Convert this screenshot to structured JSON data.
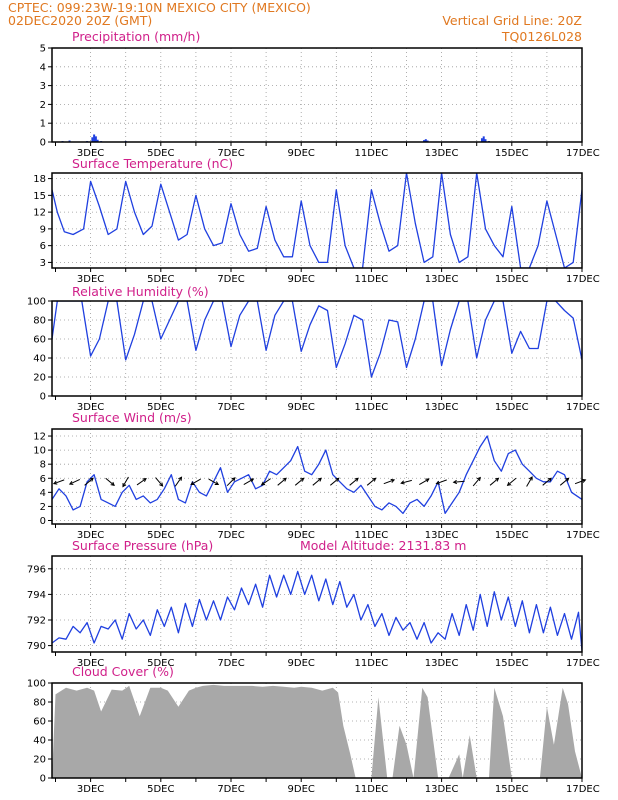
{
  "header": {
    "line1": "CPTEC:   099:23W-19:10N   MEXICO CITY (MEXICO)",
    "line2": "02DEC2020 20Z (GMT)",
    "vertical_grid": "Vertical Grid Line: 20Z",
    "code": "TQ0126L028"
  },
  "colors": {
    "header": "#e07820",
    "titles": "#d0208a",
    "line": "#2040e0",
    "cloud": "#a8a8a8"
  },
  "x_axis": {
    "labels": [
      "3DEC",
      "5DEC",
      "7DEC",
      "9DEC",
      "11DEC",
      "13DEC",
      "15DEC",
      "17DEC"
    ],
    "label_days": [
      3,
      5,
      7,
      9,
      11,
      13,
      15,
      17
    ],
    "start_day": 1.9,
    "end_day": 17.0
  },
  "chart_data": [
    {
      "id": "precip",
      "type": "bar",
      "title": "Precipitation (mm/h)",
      "ylim": [
        0,
        5
      ],
      "yticks": [
        0,
        1,
        2,
        3,
        4,
        5
      ],
      "ytick_labels": [
        "0",
        "1",
        "2",
        "3",
        "4",
        "5"
      ],
      "x": [
        2.2,
        2.4,
        2.9,
        3.05,
        3.1,
        3.15,
        3.2,
        3.3,
        4.0,
        4.8,
        6.5,
        7.3,
        12.5,
        12.55,
        12.6,
        13.3,
        14.15,
        14.2,
        14.25,
        14.35
      ],
      "values": [
        0.05,
        0.08,
        0.05,
        0.25,
        0.4,
        0.3,
        0.12,
        0.05,
        0.05,
        0.04,
        0.03,
        0.03,
        0.1,
        0.15,
        0.08,
        0.03,
        0.2,
        0.3,
        0.15,
        0.05
      ]
    },
    {
      "id": "temp",
      "type": "line",
      "title": "Surface Temperature (nC)",
      "ylim": [
        2,
        19
      ],
      "yticks": [
        3,
        6,
        9,
        12,
        15,
        18
      ],
      "ytick_labels": [
        "3",
        "6",
        "9",
        "12",
        "15",
        "18"
      ],
      "x": [
        1.9,
        2.05,
        2.25,
        2.5,
        2.8,
        3.0,
        3.25,
        3.5,
        3.75,
        4.0,
        4.25,
        4.5,
        4.75,
        5.0,
        5.25,
        5.5,
        5.75,
        6.0,
        6.25,
        6.5,
        6.75,
        7.0,
        7.25,
        7.5,
        7.75,
        8.0,
        8.25,
        8.5,
        8.75,
        9.0,
        9.25,
        9.5,
        9.75,
        10.0,
        10.25,
        10.5,
        10.75,
        11.0,
        11.25,
        11.5,
        11.75,
        12.0,
        12.25,
        12.5,
        12.75,
        13.0,
        13.25,
        13.5,
        13.75,
        14.0,
        14.25,
        14.5,
        14.75,
        15.0,
        15.25,
        15.5,
        15.75,
        16.0,
        16.25,
        16.5,
        16.75,
        17.0
      ],
      "values": [
        16.0,
        12.0,
        8.5,
        8.0,
        9.0,
        17.5,
        13.0,
        8.0,
        9.0,
        17.5,
        12.0,
        8.0,
        9.5,
        17.0,
        12.0,
        7.0,
        8.0,
        15.0,
        9.0,
        6.0,
        6.5,
        13.5,
        8.0,
        5.0,
        5.5,
        13.0,
        7.0,
        4.0,
        4.0,
        14.0,
        6.0,
        3.0,
        3.0,
        16.0,
        6.0,
        2.0,
        2.0,
        16.0,
        10.0,
        5.0,
        6.0,
        19.0,
        10.0,
        3.0,
        4.0,
        19.0,
        8.0,
        3.0,
        4.0,
        19.0,
        9.0,
        6.0,
        4.0,
        13.0,
        2.0,
        2.0,
        6.0,
        14.0,
        8.0,
        2.0,
        3.0,
        16.0
      ]
    },
    {
      "id": "rh",
      "type": "line",
      "title": "Relative Humidity (%)",
      "ylim": [
        0,
        100
      ],
      "yticks": [
        0,
        20,
        40,
        60,
        80,
        100
      ],
      "ytick_labels": [
        "0",
        "20",
        "40",
        "60",
        "80",
        "100"
      ],
      "x": [
        1.9,
        2.05,
        2.25,
        2.5,
        2.75,
        3.0,
        3.25,
        3.5,
        3.75,
        4.0,
        4.25,
        4.5,
        4.75,
        5.0,
        5.25,
        5.5,
        5.75,
        6.0,
        6.25,
        6.5,
        6.75,
        7.0,
        7.25,
        7.5,
        7.75,
        8.0,
        8.25,
        8.5,
        8.75,
        9.0,
        9.25,
        9.5,
        9.75,
        10.0,
        10.25,
        10.5,
        10.75,
        11.0,
        11.25,
        11.5,
        11.75,
        12.0,
        12.25,
        12.5,
        12.75,
        13.0,
        13.25,
        13.5,
        13.75,
        14.0,
        14.25,
        14.5,
        14.75,
        15.0,
        15.25,
        15.5,
        15.75,
        16.0,
        16.25,
        16.5,
        16.75,
        17.0
      ],
      "values": [
        60,
        100,
        100,
        100,
        100,
        42,
        60,
        100,
        100,
        38,
        65,
        100,
        100,
        60,
        80,
        100,
        100,
        48,
        80,
        100,
        100,
        52,
        85,
        100,
        100,
        48,
        85,
        100,
        100,
        47,
        75,
        95,
        90,
        30,
        55,
        85,
        80,
        20,
        45,
        80,
        78,
        30,
        60,
        100,
        100,
        32,
        70,
        100,
        100,
        40,
        80,
        100,
        100,
        45,
        68,
        50,
        50,
        100,
        100,
        90,
        82,
        38
      ]
    },
    {
      "id": "wind",
      "type": "line",
      "title": "Surface Wind (m/s)",
      "ylim": [
        -0.5,
        13
      ],
      "yticks": [
        0,
        2,
        4,
        6,
        8,
        10,
        12
      ],
      "ytick_labels": [
        "0",
        "2",
        "4",
        "6",
        "8",
        "10",
        "12"
      ],
      "x": [
        1.9,
        2.1,
        2.3,
        2.5,
        2.7,
        2.9,
        3.1,
        3.3,
        3.5,
        3.7,
        3.9,
        4.1,
        4.3,
        4.5,
        4.7,
        4.9,
        5.1,
        5.3,
        5.5,
        5.7,
        5.9,
        6.1,
        6.3,
        6.5,
        6.7,
        6.9,
        7.1,
        7.3,
        7.5,
        7.7,
        7.9,
        8.1,
        8.3,
        8.5,
        8.7,
        8.9,
        9.1,
        9.3,
        9.5,
        9.7,
        9.9,
        10.1,
        10.3,
        10.5,
        10.7,
        10.9,
        11.1,
        11.3,
        11.5,
        11.7,
        11.9,
        12.1,
        12.3,
        12.5,
        12.7,
        12.9,
        13.1,
        13.3,
        13.5,
        13.7,
        13.9,
        14.1,
        14.3,
        14.5,
        14.7,
        14.9,
        15.1,
        15.3,
        15.5,
        15.7,
        15.9,
        16.1,
        16.3,
        16.5,
        16.7,
        17.0
      ],
      "values": [
        3.0,
        4.5,
        3.5,
        1.5,
        2.0,
        5.5,
        6.5,
        3.0,
        2.5,
        2.0,
        4.0,
        5.0,
        3.0,
        3.5,
        2.5,
        3.0,
        4.5,
        6.5,
        3.0,
        2.5,
        5.5,
        4.0,
        3.5,
        5.5,
        7.5,
        4.0,
        5.5,
        6.0,
        6.5,
        4.5,
        5.0,
        7.0,
        6.5,
        7.5,
        8.5,
        10.5,
        7.0,
        6.5,
        8.0,
        10.0,
        6.5,
        5.5,
        4.5,
        4.0,
        5.0,
        3.5,
        2.0,
        1.5,
        2.5,
        2.0,
        1.0,
        2.5,
        3.0,
        2.0,
        3.5,
        5.5,
        1.0,
        2.5,
        4.0,
        6.5,
        8.5,
        10.5,
        12.0,
        8.5,
        7.0,
        9.5,
        10.0,
        8.0,
        7.0,
        6.0,
        5.5,
        5.5,
        7.0,
        6.5,
        4.0,
        3.0
      ],
      "arrow_days": [
        2.1,
        2.55,
        2.95,
        3.55,
        4.0,
        4.45,
        4.95,
        5.5,
        6.0,
        6.5,
        7.0,
        7.5,
        8.0,
        8.45,
        8.95,
        9.45,
        9.95,
        10.5,
        11.0,
        11.5,
        12.0,
        12.5,
        13.0,
        13.5,
        14.0,
        14.5,
        15.0,
        15.5,
        16.0,
        16.5,
        16.95
      ],
      "arrow_angles_deg": [
        -160,
        -155,
        40,
        -40,
        -120,
        35,
        -50,
        55,
        -150,
        -30,
        45,
        30,
        -145,
        40,
        40,
        40,
        40,
        40,
        40,
        20,
        -165,
        30,
        -160,
        -175,
        50,
        40,
        -140,
        60,
        40,
        40,
        20
      ]
    },
    {
      "id": "pressure",
      "type": "line",
      "title": "Surface Pressure (hPa)",
      "model_altitude": "Model Altitude: 2131.83 m",
      "ylim": [
        789.5,
        797
      ],
      "yticks": [
        790,
        792,
        794,
        796
      ],
      "ytick_labels": [
        "790",
        "792",
        "794",
        "796"
      ],
      "x": [
        1.9,
        2.1,
        2.3,
        2.5,
        2.7,
        2.9,
        3.1,
        3.3,
        3.5,
        3.7,
        3.9,
        4.1,
        4.3,
        4.5,
        4.7,
        4.9,
        5.1,
        5.3,
        5.5,
        5.7,
        5.9,
        6.1,
        6.3,
        6.5,
        6.7,
        6.9,
        7.1,
        7.3,
        7.5,
        7.7,
        7.9,
        8.1,
        8.3,
        8.5,
        8.7,
        8.9,
        9.1,
        9.3,
        9.5,
        9.7,
        9.9,
        10.1,
        10.3,
        10.5,
        10.7,
        10.9,
        11.1,
        11.3,
        11.5,
        11.7,
        11.9,
        12.1,
        12.3,
        12.5,
        12.7,
        12.9,
        13.1,
        13.3,
        13.5,
        13.7,
        13.9,
        14.1,
        14.3,
        14.5,
        14.7,
        14.9,
        15.1,
        15.3,
        15.5,
        15.7,
        15.9,
        16.1,
        16.3,
        16.5,
        16.7,
        16.9,
        17.0
      ],
      "values": [
        790.2,
        790.6,
        790.5,
        791.5,
        791.0,
        791.8,
        790.2,
        791.5,
        791.3,
        792.0,
        790.5,
        792.5,
        791.3,
        792.0,
        790.8,
        792.8,
        791.5,
        793.0,
        791.0,
        793.3,
        791.5,
        793.6,
        792.0,
        793.5,
        792.0,
        793.8,
        792.8,
        794.5,
        793.2,
        794.8,
        793.0,
        795.5,
        793.8,
        795.5,
        794.0,
        795.8,
        794.0,
        795.5,
        793.5,
        795.2,
        793.2,
        795.0,
        793.0,
        794.0,
        792.0,
        793.2,
        791.5,
        792.5,
        790.8,
        792.2,
        791.2,
        791.8,
        790.5,
        791.8,
        790.2,
        791.0,
        790.5,
        792.5,
        790.8,
        793.2,
        791.2,
        794.0,
        791.5,
        794.2,
        792.0,
        793.8,
        791.5,
        793.5,
        791.0,
        793.2,
        791.0,
        793.0,
        790.8,
        792.5,
        790.5,
        792.6,
        789.6
      ]
    },
    {
      "id": "cloud",
      "type": "area",
      "title": "Cloud Cover (%)",
      "ylim": [
        0,
        100
      ],
      "yticks": [
        0,
        20,
        40,
        60,
        80,
        100
      ],
      "ytick_labels": [
        "0",
        "20",
        "40",
        "60",
        "80",
        "100"
      ],
      "x": [
        1.9,
        2.0,
        2.3,
        2.6,
        2.9,
        3.1,
        3.3,
        3.6,
        3.9,
        4.1,
        4.4,
        4.7,
        5.0,
        5.2,
        5.5,
        5.8,
        6.0,
        6.2,
        6.5,
        6.8,
        7.0,
        7.3,
        7.6,
        7.9,
        8.2,
        8.5,
        8.8,
        9.0,
        9.3,
        9.6,
        9.9,
        10.05,
        10.2,
        10.4,
        10.55,
        10.7,
        11.0,
        11.2,
        11.45,
        11.6,
        11.8,
        12.0,
        12.2,
        12.45,
        12.6,
        12.9,
        13.2,
        13.5,
        13.6,
        13.8,
        14.0,
        14.2,
        14.35,
        14.5,
        14.75,
        15.0,
        15.2,
        15.5,
        15.8,
        16.0,
        16.2,
        16.45,
        16.6,
        16.8,
        17.0
      ],
      "values": [
        0,
        88,
        95,
        92,
        95,
        92,
        70,
        93,
        92,
        97,
        65,
        95,
        95,
        92,
        75,
        92,
        95,
        97,
        98,
        97,
        97,
        97,
        97,
        96,
        97,
        96,
        95,
        96,
        95,
        92,
        95,
        90,
        55,
        25,
        0,
        0,
        0,
        85,
        0,
        0,
        55,
        35,
        0,
        95,
        85,
        0,
        0,
        25,
        0,
        45,
        0,
        0,
        0,
        95,
        65,
        0,
        0,
        0,
        0,
        75,
        35,
        95,
        78,
        28,
        0
      ]
    }
  ]
}
